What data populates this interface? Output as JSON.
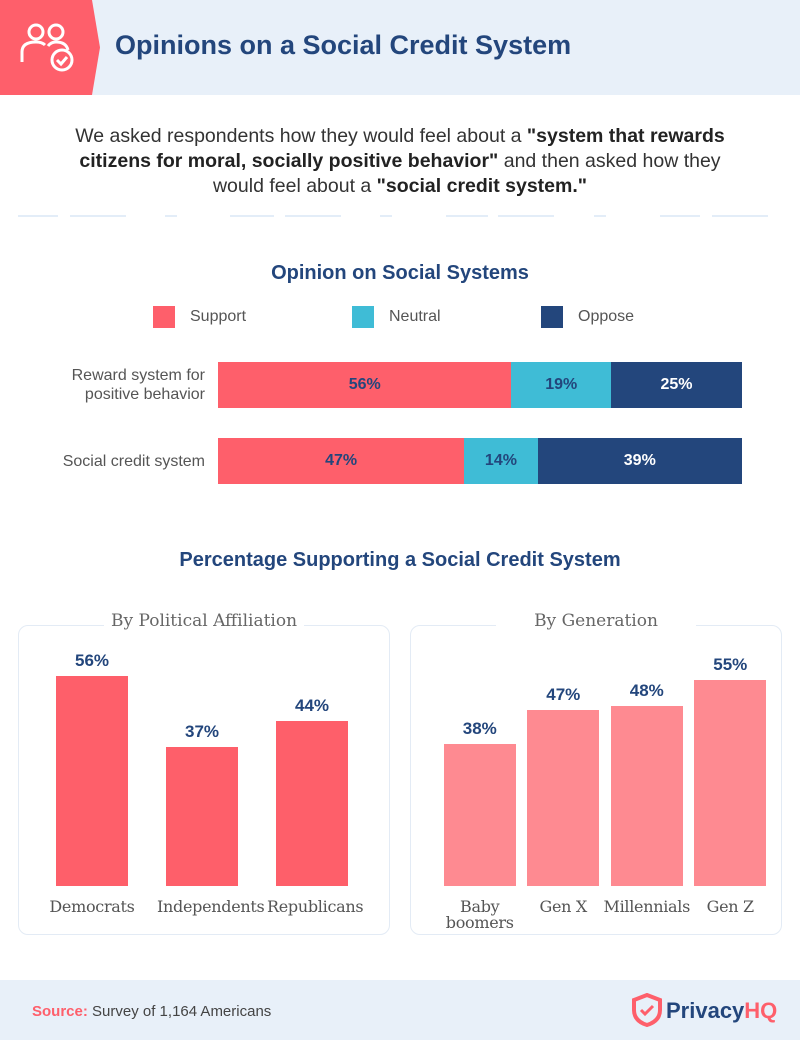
{
  "header": {
    "title": "Opinions on a Social Credit System"
  },
  "intro": {
    "segments": [
      {
        "text": "We asked respondents how they would feel about a ",
        "bold": false
      },
      {
        "text": "\"system that rewards citizens for moral, socially positive behavior\"",
        "bold": true
      },
      {
        "text": " and then asked how they would feel about a ",
        "bold": false
      },
      {
        "text": "\"social credit system.\"",
        "bold": true
      }
    ]
  },
  "section_title": "Percentage Supporting a Social Credit System",
  "chart_data": [
    {
      "type": "bar",
      "orientation": "horizontal",
      "stacked": true,
      "title": "Opinion on Social Systems",
      "categories": [
        "Reward system for positive behavior",
        "Social credit system"
      ],
      "xlim": [
        0,
        100
      ],
      "series": [
        {
          "name": "Support",
          "color": "#fe5f6b",
          "label_color": "#23467c",
          "values": [
            56,
            47
          ],
          "value_labels": [
            "56%",
            "47%"
          ]
        },
        {
          "name": "Neutral",
          "color": "#3fbcd6",
          "label_color": "#23467c",
          "values": [
            19,
            14
          ],
          "value_labels": [
            "19%",
            "14%"
          ]
        },
        {
          "name": "Oppose",
          "color": "#23467c",
          "label_color": "#ffffff",
          "values": [
            25,
            39
          ],
          "value_labels": [
            "25%",
            "39%"
          ]
        }
      ]
    },
    {
      "type": "bar",
      "title": "By Political Affiliation",
      "categories": [
        "Democrats",
        "Independents",
        "Republicans"
      ],
      "values": [
        56,
        37,
        44
      ],
      "value_labels": [
        "56%",
        "37%",
        "44%"
      ],
      "color": "#fe5f6a",
      "ylim": [
        0,
        60
      ]
    },
    {
      "type": "bar",
      "title": "By Generation",
      "categories": [
        "Baby boomers",
        "Gen X",
        "Millennials",
        "Gen Z"
      ],
      "values": [
        38,
        47,
        48,
        55
      ],
      "value_labels": [
        "38%",
        "47%",
        "48%",
        "55%"
      ],
      "color": "#fe8a91",
      "ylim": [
        0,
        60
      ]
    }
  ],
  "footer": {
    "source_label": "Source:",
    "source_text": "Survey of 1,164 Americans",
    "logo": [
      "Privacy",
      "HQ"
    ]
  }
}
